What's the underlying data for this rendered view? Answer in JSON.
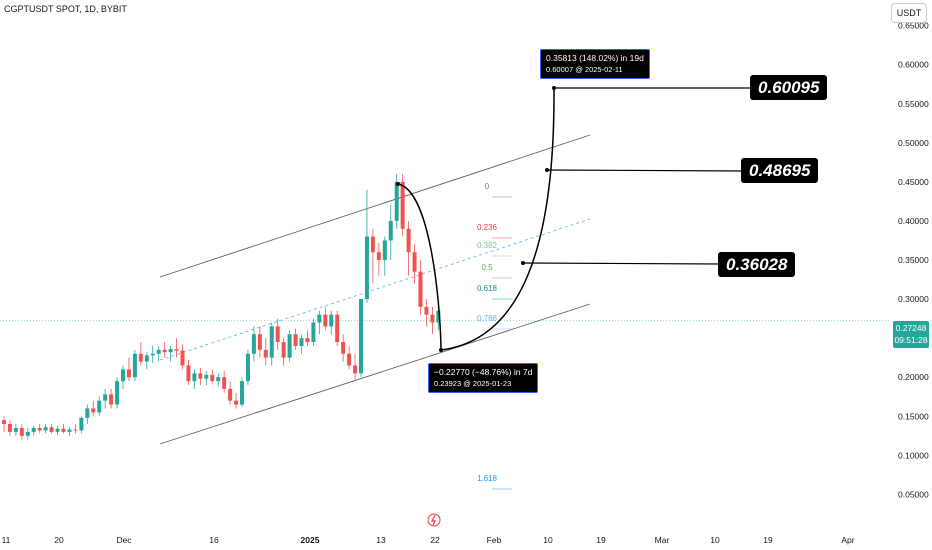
{
  "header": {
    "symbol": "CGPTUSDT SPOT, 1D, BYBIT",
    "currency": "USDT"
  },
  "chart_data": {
    "type": "candlestick",
    "y_axis": {
      "min": 0.03,
      "max": 0.67,
      "ticks": [
        "0.65000",
        "0.60000",
        "0.55000",
        "0.50000",
        "0.45000",
        "0.40000",
        "0.35000",
        "0.30000",
        "0.25000",
        "0.20000",
        "0.15000",
        "0.10000",
        "0.05000"
      ]
    },
    "x_axis": {
      "ticks": [
        "11",
        "20",
        "Dec",
        "16",
        "2025",
        "13",
        "22",
        "Feb",
        "10",
        "19",
        "Mar",
        "10",
        "19",
        "Apr"
      ]
    },
    "candles": [
      [
        0.145,
        0.15,
        0.13,
        0.14
      ],
      [
        0.14,
        0.145,
        0.125,
        0.13
      ],
      [
        0.13,
        0.14,
        0.125,
        0.135
      ],
      [
        0.135,
        0.14,
        0.12,
        0.125
      ],
      [
        0.125,
        0.135,
        0.12,
        0.13
      ],
      [
        0.13,
        0.138,
        0.125,
        0.135
      ],
      [
        0.135,
        0.14,
        0.128,
        0.132
      ],
      [
        0.132,
        0.14,
        0.128,
        0.136
      ],
      [
        0.136,
        0.14,
        0.128,
        0.13
      ],
      [
        0.13,
        0.138,
        0.126,
        0.134
      ],
      [
        0.134,
        0.14,
        0.128,
        0.13
      ],
      [
        0.13,
        0.136,
        0.125,
        0.133
      ],
      [
        0.133,
        0.14,
        0.128,
        0.132
      ],
      [
        0.132,
        0.15,
        0.128,
        0.148
      ],
      [
        0.148,
        0.165,
        0.14,
        0.16
      ],
      [
        0.16,
        0.17,
        0.15,
        0.155
      ],
      [
        0.155,
        0.175,
        0.15,
        0.17
      ],
      [
        0.17,
        0.185,
        0.16,
        0.178
      ],
      [
        0.178,
        0.185,
        0.16,
        0.165
      ],
      [
        0.165,
        0.2,
        0.16,
        0.195
      ],
      [
        0.195,
        0.215,
        0.185,
        0.21
      ],
      [
        0.21,
        0.225,
        0.195,
        0.2
      ],
      [
        0.2,
        0.235,
        0.195,
        0.23
      ],
      [
        0.23,
        0.245,
        0.215,
        0.22
      ],
      [
        0.22,
        0.232,
        0.21,
        0.228
      ],
      [
        0.228,
        0.24,
        0.218,
        0.23
      ],
      [
        0.23,
        0.24,
        0.22,
        0.235
      ],
      [
        0.235,
        0.245,
        0.225,
        0.232
      ],
      [
        0.232,
        0.24,
        0.22,
        0.236
      ],
      [
        0.236,
        0.25,
        0.225,
        0.234
      ],
      [
        0.234,
        0.242,
        0.21,
        0.215
      ],
      [
        0.215,
        0.222,
        0.19,
        0.195
      ],
      [
        0.195,
        0.21,
        0.185,
        0.205
      ],
      [
        0.205,
        0.212,
        0.19,
        0.198
      ],
      [
        0.198,
        0.208,
        0.19,
        0.203
      ],
      [
        0.203,
        0.21,
        0.192,
        0.195
      ],
      [
        0.195,
        0.205,
        0.188,
        0.2
      ],
      [
        0.2,
        0.208,
        0.18,
        0.185
      ],
      [
        0.185,
        0.195,
        0.165,
        0.17
      ],
      [
        0.17,
        0.18,
        0.16,
        0.165
      ],
      [
        0.165,
        0.2,
        0.162,
        0.195
      ],
      [
        0.195,
        0.235,
        0.19,
        0.23
      ],
      [
        0.23,
        0.265,
        0.22,
        0.255
      ],
      [
        0.255,
        0.265,
        0.225,
        0.235
      ],
      [
        0.235,
        0.25,
        0.215,
        0.225
      ],
      [
        0.225,
        0.27,
        0.215,
        0.265
      ],
      [
        0.265,
        0.275,
        0.235,
        0.245
      ],
      [
        0.245,
        0.25,
        0.215,
        0.225
      ],
      [
        0.225,
        0.26,
        0.22,
        0.255
      ],
      [
        0.255,
        0.262,
        0.235,
        0.24
      ],
      [
        0.24,
        0.255,
        0.23,
        0.25
      ],
      [
        0.25,
        0.26,
        0.24,
        0.245
      ],
      [
        0.245,
        0.275,
        0.24,
        0.27
      ],
      [
        0.27,
        0.285,
        0.255,
        0.28
      ],
      [
        0.28,
        0.29,
        0.26,
        0.265
      ],
      [
        0.265,
        0.285,
        0.255,
        0.28
      ],
      [
        0.28,
        0.285,
        0.24,
        0.245
      ],
      [
        0.245,
        0.255,
        0.22,
        0.23
      ],
      [
        0.23,
        0.24,
        0.21,
        0.215
      ],
      [
        0.215,
        0.23,
        0.195,
        0.205
      ],
      [
        0.205,
        0.3,
        0.2,
        0.3
      ],
      [
        0.3,
        0.44,
        0.295,
        0.38
      ],
      [
        0.38,
        0.39,
        0.32,
        0.36
      ],
      [
        0.36,
        0.372,
        0.33,
        0.35
      ],
      [
        0.35,
        0.38,
        0.33,
        0.375
      ],
      [
        0.375,
        0.42,
        0.35,
        0.4
      ],
      [
        0.4,
        0.46,
        0.39,
        0.45
      ],
      [
        0.45,
        0.46,
        0.38,
        0.39
      ],
      [
        0.39,
        0.4,
        0.33,
        0.36
      ],
      [
        0.36,
        0.37,
        0.32,
        0.335
      ],
      [
        0.335,
        0.35,
        0.28,
        0.29
      ],
      [
        0.29,
        0.3,
        0.265,
        0.28
      ],
      [
        0.28,
        0.29,
        0.255,
        0.27
      ],
      [
        0.27,
        0.29,
        0.26,
        0.285
      ]
    ],
    "fibonacci": {
      "levels": [
        "0",
        "0.236",
        "0.382",
        "0.5",
        "0.618",
        "0.786",
        "1.618"
      ],
      "colors": [
        "#787b86",
        "#f23645",
        "#81c784",
        "#4caf50",
        "#089981",
        "#64b5f6",
        "#2196f3"
      ]
    },
    "price_tag": {
      "price": "0.27248",
      "countdown": "09:51:28"
    },
    "projection_labels": [
      "0.60095",
      "0.48695",
      "0.36028"
    ],
    "measure_down": {
      "line1": "−0.22770 (−48.76%) in 7d",
      "line2": "0.23923 @ 2025-01-23"
    },
    "measure_up": {
      "line1": "0.35813 (148.02%) in 19d",
      "line2": "0.60007 @ 2025-02-11"
    },
    "colors": {
      "up": "#26a69a",
      "up_wick": "#26a69a",
      "down": "#ef5350"
    }
  }
}
